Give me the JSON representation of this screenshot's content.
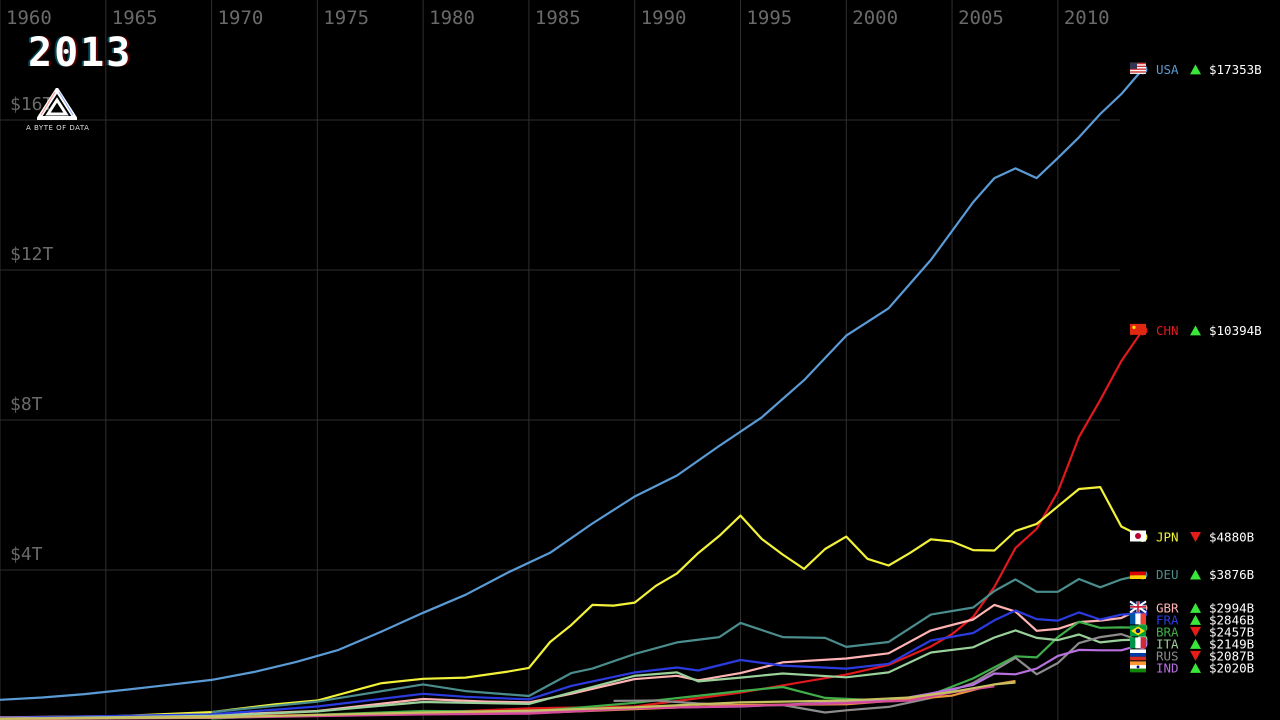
{
  "year": "2013",
  "logo": {
    "text": "A BYTE OF DATA"
  },
  "colors": {
    "background": "#000000",
    "grid": "#2e2e2e",
    "axis_text": "#6a6a6a",
    "up": "#39e639",
    "down": "#e51c1c"
  },
  "chart_data": {
    "type": "line",
    "title": "",
    "xlabel": "",
    "ylabel": "",
    "x_ticks": [
      "1960",
      "1965",
      "1970",
      "1975",
      "1980",
      "1985",
      "1990",
      "1995",
      "2000",
      "2005",
      "2010"
    ],
    "y_ticks": [
      "$4T",
      "$8T",
      "$12T",
      "$16T"
    ],
    "xlim": [
      1960,
      2020.5
    ],
    "ylim": [
      0,
      19.2
    ],
    "y_unit": "trillion USD",
    "grid": true,
    "legend": "right",
    "series": [
      {
        "name": "USA",
        "flag": "usa",
        "color": "#5b9bd5",
        "value_label": "$17353B",
        "trend": "up",
        "points": [
          [
            1960,
            0.54
          ],
          [
            1962,
            0.6
          ],
          [
            1964,
            0.69
          ],
          [
            1966,
            0.81
          ],
          [
            1968,
            0.94
          ],
          [
            1970,
            1.07
          ],
          [
            1972,
            1.28
          ],
          [
            1974,
            1.55
          ],
          [
            1976,
            1.87
          ],
          [
            1978,
            2.35
          ],
          [
            1980,
            2.86
          ],
          [
            1982,
            3.34
          ],
          [
            1984,
            3.93
          ],
          [
            1986,
            4.46
          ],
          [
            1988,
            5.24
          ],
          [
            1990,
            5.96
          ],
          [
            1992,
            6.52
          ],
          [
            1994,
            7.31
          ],
          [
            1996,
            8.07
          ],
          [
            1998,
            9.06
          ],
          [
            2000,
            10.25
          ],
          [
            2002,
            10.98
          ],
          [
            2004,
            12.27
          ],
          [
            2006,
            13.81
          ],
          [
            2007,
            14.45
          ],
          [
            2008,
            14.71
          ],
          [
            2009,
            14.45
          ],
          [
            2010,
            14.99
          ],
          [
            2011,
            15.54
          ],
          [
            2012,
            16.16
          ],
          [
            2013,
            16.69
          ],
          [
            2014,
            17.35
          ]
        ]
      },
      {
        "name": "CHN",
        "flag": "chn",
        "color": "#e0191e",
        "value_label": "$10394B",
        "trend": "up",
        "points": [
          [
            1960,
            0.06
          ],
          [
            1970,
            0.09
          ],
          [
            1980,
            0.19
          ],
          [
            1985,
            0.31
          ],
          [
            1990,
            0.36
          ],
          [
            1995,
            0.73
          ],
          [
            2000,
            1.21
          ],
          [
            2002,
            1.47
          ],
          [
            2004,
            1.96
          ],
          [
            2005,
            2.29
          ],
          [
            2006,
            2.75
          ],
          [
            2007,
            3.55
          ],
          [
            2008,
            4.59
          ],
          [
            2009,
            5.1
          ],
          [
            2010,
            6.09
          ],
          [
            2011,
            7.55
          ],
          [
            2012,
            8.53
          ],
          [
            2013,
            9.57
          ],
          [
            2014,
            10.39
          ]
        ]
      },
      {
        "name": "JPN",
        "flag": "jpn",
        "color": "#f2f23a",
        "value_label": "$4880B",
        "trend": "down",
        "points": [
          [
            1960,
            0.04
          ],
          [
            1965,
            0.09
          ],
          [
            1970,
            0.21
          ],
          [
            1973,
            0.42
          ],
          [
            1975,
            0.52
          ],
          [
            1978,
            0.98
          ],
          [
            1980,
            1.1
          ],
          [
            1982,
            1.13
          ],
          [
            1984,
            1.29
          ],
          [
            1985,
            1.39
          ],
          [
            1986,
            2.08
          ],
          [
            1987,
            2.53
          ],
          [
            1988,
            3.07
          ],
          [
            1989,
            3.05
          ],
          [
            1990,
            3.13
          ],
          [
            1991,
            3.58
          ],
          [
            1992,
            3.91
          ],
          [
            1993,
            4.45
          ],
          [
            1994,
            4.91
          ],
          [
            1995,
            5.45
          ],
          [
            1996,
            4.83
          ],
          [
            1997,
            4.41
          ],
          [
            1998,
            4.03
          ],
          [
            1999,
            4.56
          ],
          [
            2000,
            4.89
          ],
          [
            2001,
            4.3
          ],
          [
            2002,
            4.12
          ],
          [
            2003,
            4.45
          ],
          [
            2004,
            4.82
          ],
          [
            2005,
            4.76
          ],
          [
            2006,
            4.53
          ],
          [
            2007,
            4.52
          ],
          [
            2008,
            5.04
          ],
          [
            2009,
            5.23
          ],
          [
            2010,
            5.7
          ],
          [
            2011,
            6.16
          ],
          [
            2012,
            6.21
          ],
          [
            2013,
            5.16
          ],
          [
            2014,
            4.88
          ]
        ]
      },
      {
        "name": "DEU",
        "flag": "deu",
        "color": "#4b8c8c",
        "value_label": "$3876B",
        "trend": "up",
        "points": [
          [
            1970,
            0.21
          ],
          [
            1975,
            0.49
          ],
          [
            1980,
            0.95
          ],
          [
            1982,
            0.77
          ],
          [
            1985,
            0.64
          ],
          [
            1987,
            1.25
          ],
          [
            1988,
            1.37
          ],
          [
            1990,
            1.76
          ],
          [
            1992,
            2.07
          ],
          [
            1994,
            2.21
          ],
          [
            1995,
            2.59
          ],
          [
            1997,
            2.21
          ],
          [
            1999,
            2.19
          ],
          [
            2000,
            1.95
          ],
          [
            2002,
            2.08
          ],
          [
            2004,
            2.81
          ],
          [
            2006,
            3.0
          ],
          [
            2007,
            3.44
          ],
          [
            2008,
            3.75
          ],
          [
            2009,
            3.42
          ],
          [
            2010,
            3.42
          ],
          [
            2011,
            3.76
          ],
          [
            2012,
            3.54
          ],
          [
            2013,
            3.75
          ],
          [
            2014,
            3.88
          ]
        ]
      },
      {
        "name": "GBR",
        "flag": "gbr",
        "color": "#ffb3b3",
        "value_label": "$2994B",
        "trend": "up",
        "points": [
          [
            1960,
            0.07
          ],
          [
            1970,
            0.13
          ],
          [
            1975,
            0.24
          ],
          [
            1980,
            0.56
          ],
          [
            1983,
            0.49
          ],
          [
            1985,
            0.47
          ],
          [
            1987,
            0.7
          ],
          [
            1990,
            1.09
          ],
          [
            1992,
            1.18
          ],
          [
            1993,
            1.06
          ],
          [
            1995,
            1.25
          ],
          [
            1997,
            1.54
          ],
          [
            2000,
            1.64
          ],
          [
            2002,
            1.78
          ],
          [
            2004,
            2.39
          ],
          [
            2006,
            2.68
          ],
          [
            2007,
            3.07
          ],
          [
            2008,
            2.89
          ],
          [
            2009,
            2.38
          ],
          [
            2010,
            2.43
          ],
          [
            2011,
            2.61
          ],
          [
            2012,
            2.65
          ],
          [
            2013,
            2.72
          ],
          [
            2014,
            2.99
          ]
        ]
      },
      {
        "name": "FRA",
        "flag": "fra",
        "color": "#2c3be0",
        "value_label": "$2846B",
        "trend": "up",
        "points": [
          [
            1960,
            0.06
          ],
          [
            1970,
            0.15
          ],
          [
            1975,
            0.36
          ],
          [
            1980,
            0.7
          ],
          [
            1982,
            0.62
          ],
          [
            1985,
            0.55
          ],
          [
            1987,
            0.91
          ],
          [
            1990,
            1.27
          ],
          [
            1992,
            1.4
          ],
          [
            1993,
            1.32
          ],
          [
            1995,
            1.6
          ],
          [
            1997,
            1.45
          ],
          [
            2000,
            1.37
          ],
          [
            2002,
            1.5
          ],
          [
            2004,
            2.12
          ],
          [
            2006,
            2.32
          ],
          [
            2007,
            2.66
          ],
          [
            2008,
            2.92
          ],
          [
            2009,
            2.69
          ],
          [
            2010,
            2.65
          ],
          [
            2011,
            2.87
          ],
          [
            2012,
            2.68
          ],
          [
            2013,
            2.81
          ],
          [
            2014,
            2.85
          ]
        ]
      },
      {
        "name": "BRA",
        "flag": "bra",
        "color": "#3fae49",
        "value_label": "$2457B",
        "trend": "down",
        "points": [
          [
            1970,
            0.04
          ],
          [
            1980,
            0.24
          ],
          [
            1985,
            0.22
          ],
          [
            1990,
            0.46
          ],
          [
            1995,
            0.77
          ],
          [
            1997,
            0.88
          ],
          [
            1999,
            0.59
          ],
          [
            2002,
            0.51
          ],
          [
            2004,
            0.67
          ],
          [
            2006,
            1.11
          ],
          [
            2008,
            1.7
          ],
          [
            2009,
            1.67
          ],
          [
            2010,
            2.21
          ],
          [
            2011,
            2.62
          ],
          [
            2012,
            2.46
          ],
          [
            2013,
            2.47
          ],
          [
            2014,
            2.46
          ]
        ]
      },
      {
        "name": "ITA",
        "flag": "ita",
        "color": "#9ad09a",
        "value_label": "$2149B",
        "trend": "up",
        "points": [
          [
            1960,
            0.04
          ],
          [
            1970,
            0.11
          ],
          [
            1975,
            0.23
          ],
          [
            1980,
            0.48
          ],
          [
            1985,
            0.43
          ],
          [
            1987,
            0.73
          ],
          [
            1990,
            1.18
          ],
          [
            1992,
            1.27
          ],
          [
            1993,
            1.03
          ],
          [
            1995,
            1.13
          ],
          [
            1997,
            1.24
          ],
          [
            2000,
            1.14
          ],
          [
            2002,
            1.27
          ],
          [
            2004,
            1.8
          ],
          [
            2006,
            1.94
          ],
          [
            2007,
            2.2
          ],
          [
            2008,
            2.39
          ],
          [
            2009,
            2.19
          ],
          [
            2010,
            2.13
          ],
          [
            2011,
            2.28
          ],
          [
            2012,
            2.07
          ],
          [
            2013,
            2.13
          ],
          [
            2014,
            2.15
          ]
        ]
      },
      {
        "name": "RUS",
        "flag": "rus",
        "color": "#8c8c8c",
        "value_label": "$2087B",
        "trend": "down",
        "points": [
          [
            1989,
            0.51
          ],
          [
            1991,
            0.52
          ],
          [
            1993,
            0.44
          ],
          [
            1995,
            0.39
          ],
          [
            1997,
            0.4
          ],
          [
            1999,
            0.2
          ],
          [
            2000,
            0.26
          ],
          [
            2002,
            0.35
          ],
          [
            2004,
            0.59
          ],
          [
            2006,
            0.99
          ],
          [
            2008,
            1.66
          ],
          [
            2009,
            1.22
          ],
          [
            2010,
            1.52
          ],
          [
            2011,
            2.05
          ],
          [
            2012,
            2.21
          ],
          [
            2013,
            2.29
          ],
          [
            2014,
            2.09
          ]
        ]
      },
      {
        "name": "IND",
        "flag": "ind",
        "color": "#b870e0",
        "value_label": "$2020B",
        "trend": "up",
        "points": [
          [
            1960,
            0.04
          ],
          [
            1970,
            0.06
          ],
          [
            1980,
            0.19
          ],
          [
            1985,
            0.23
          ],
          [
            1990,
            0.32
          ],
          [
            1995,
            0.36
          ],
          [
            2000,
            0.48
          ],
          [
            2002,
            0.51
          ],
          [
            2004,
            0.71
          ],
          [
            2006,
            0.94
          ],
          [
            2007,
            1.24
          ],
          [
            2008,
            1.22
          ],
          [
            2009,
            1.37
          ],
          [
            2010,
            1.71
          ],
          [
            2011,
            1.87
          ],
          [
            2012,
            1.86
          ],
          [
            2013,
            1.86
          ],
          [
            2014,
            2.02
          ]
        ]
      },
      {
        "name": "",
        "flag": "",
        "color": "#e8963c",
        "value_label": "",
        "trend": "",
        "points": [
          [
            1960,
            0.03
          ],
          [
            1970,
            0.08
          ],
          [
            1980,
            0.16
          ],
          [
            1985,
            0.18
          ],
          [
            1990,
            0.29
          ],
          [
            1995,
            0.4
          ],
          [
            2000,
            0.42
          ],
          [
            2003,
            0.55
          ],
          [
            2005,
            0.65
          ],
          [
            2007,
            0.95
          ],
          [
            2008,
            1.04
          ]
        ]
      },
      {
        "name": "",
        "flag": "",
        "color": "#d44a9a",
        "value_label": "",
        "trend": "",
        "points": [
          [
            1960,
            0.02
          ],
          [
            1970,
            0.06
          ],
          [
            1980,
            0.15
          ],
          [
            1985,
            0.17
          ],
          [
            1990,
            0.31
          ],
          [
            1995,
            0.37
          ],
          [
            2000,
            0.45
          ],
          [
            2003,
            0.52
          ],
          [
            2005,
            0.74
          ],
          [
            2007,
            0.9
          ]
        ]
      },
      {
        "name": "",
        "flag": "",
        "color": "#c8c060",
        "value_label": "",
        "trend": "",
        "points": [
          [
            1960,
            0.03
          ],
          [
            1970,
            0.07
          ],
          [
            1980,
            0.2
          ],
          [
            1985,
            0.25
          ],
          [
            1990,
            0.34
          ],
          [
            1995,
            0.47
          ],
          [
            2000,
            0.52
          ],
          [
            2003,
            0.6
          ],
          [
            2005,
            0.75
          ],
          [
            2007,
            0.95
          ],
          [
            2008,
            1.0
          ]
        ]
      }
    ]
  }
}
